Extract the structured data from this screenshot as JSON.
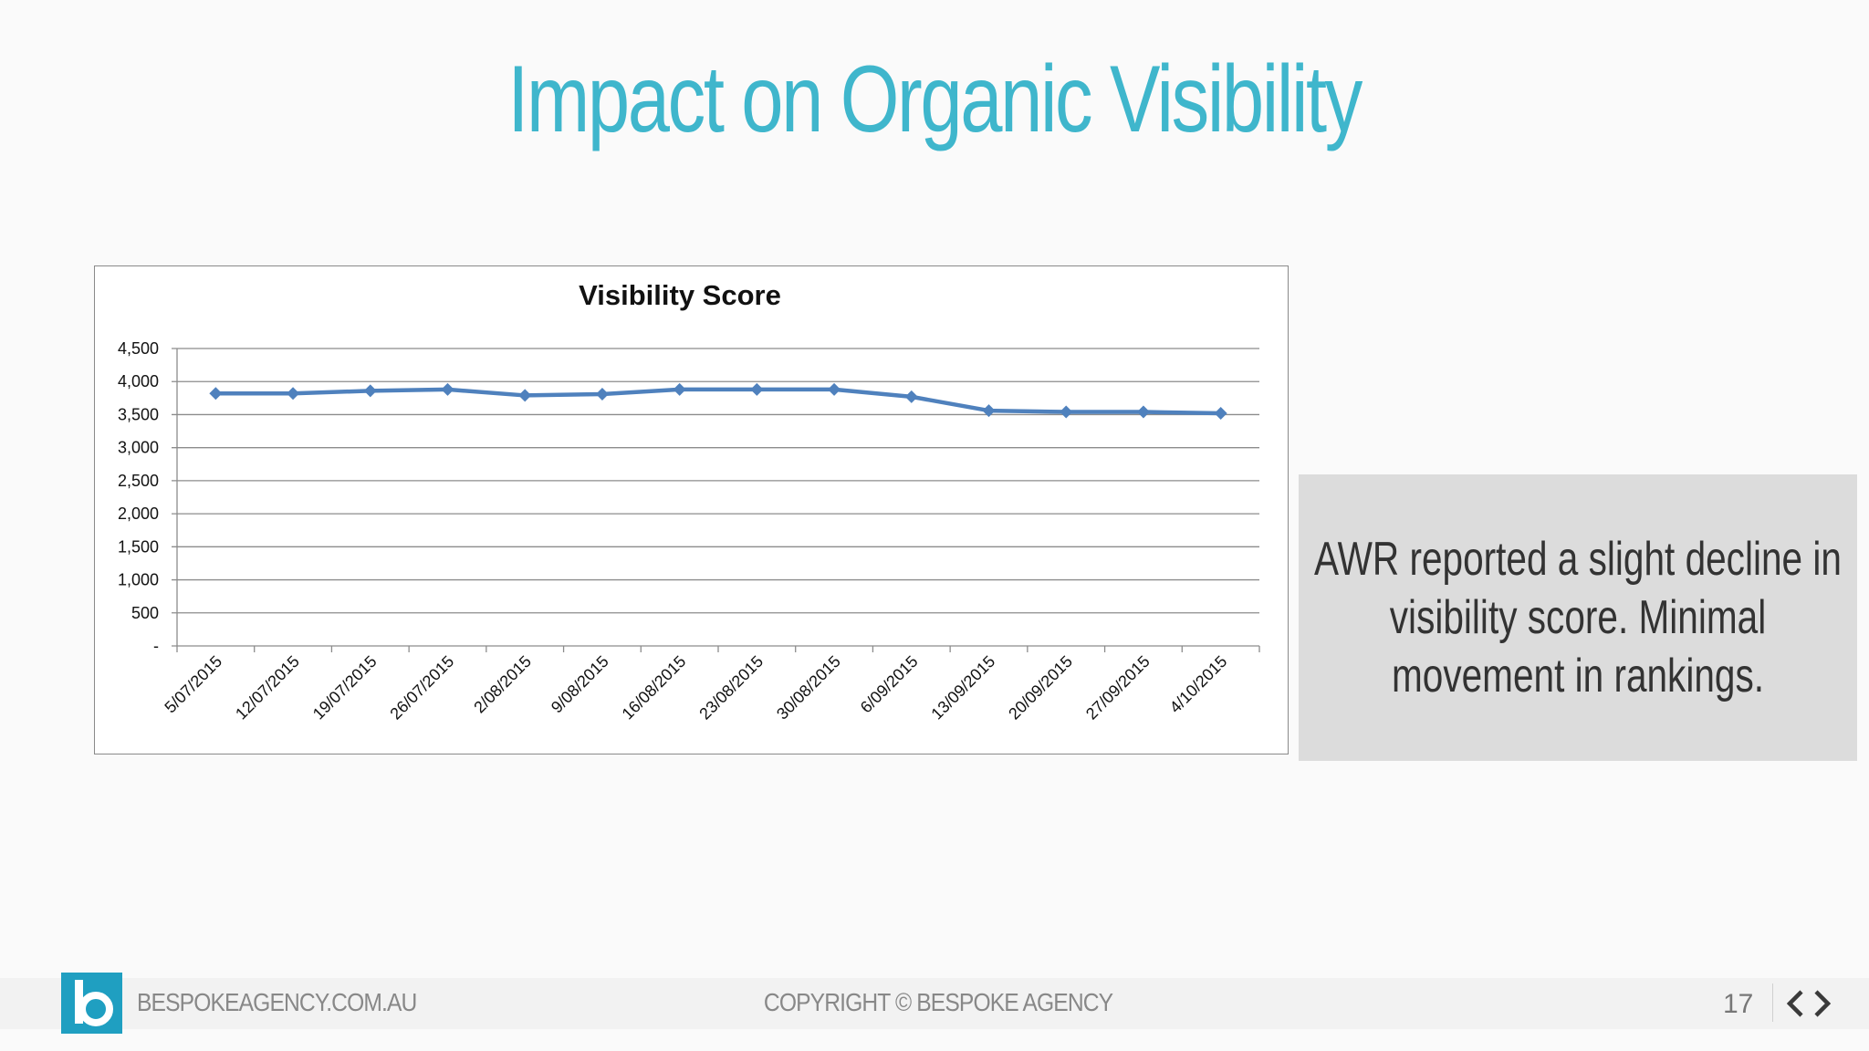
{
  "slide": {
    "title": "Impact on Organic Visibility"
  },
  "chart_data": {
    "type": "line",
    "title": "Visibility Score",
    "xlabel": "",
    "ylabel": "",
    "ylim": [
      0,
      4500
    ],
    "y_ticks": [
      0,
      500,
      1000,
      1500,
      2000,
      2500,
      3000,
      3500,
      4000,
      4500
    ],
    "y_tick_labels": [
      "-",
      "500",
      "1,000",
      "1,500",
      "2,000",
      "2,500",
      "3,000",
      "3,500",
      "4,000",
      "4,500"
    ],
    "categories": [
      "5/07/2015",
      "12/07/2015",
      "19/07/2015",
      "26/07/2015",
      "2/08/2015",
      "9/08/2015",
      "16/08/2015",
      "23/08/2015",
      "30/08/2015",
      "6/09/2015",
      "13/09/2015",
      "20/09/2015",
      "27/09/2015",
      "4/10/2015"
    ],
    "series": [
      {
        "values": [
          3820,
          3820,
          3860,
          3880,
          3790,
          3810,
          3880,
          3880,
          3880,
          3770,
          3560,
          3540,
          3540,
          3520
        ]
      }
    ],
    "grid": true,
    "legend": "none",
    "colors": {
      "line": "#4f81bd",
      "grid": "#8c8c8c"
    }
  },
  "note": {
    "text": "AWR reported a slight decline in visibility score. Minimal movement in rankings."
  },
  "footer": {
    "website": "BESPOKEAGENCY.COM.AU",
    "copyright": "COPYRIGHT © BESPOKE AGENCY",
    "page_number": "17",
    "brand_color": "#1f9fc1"
  },
  "icons": {
    "logo": "bespoke-b-logo-icon",
    "prev": "chevron-left-icon",
    "next": "chevron-right-icon"
  }
}
